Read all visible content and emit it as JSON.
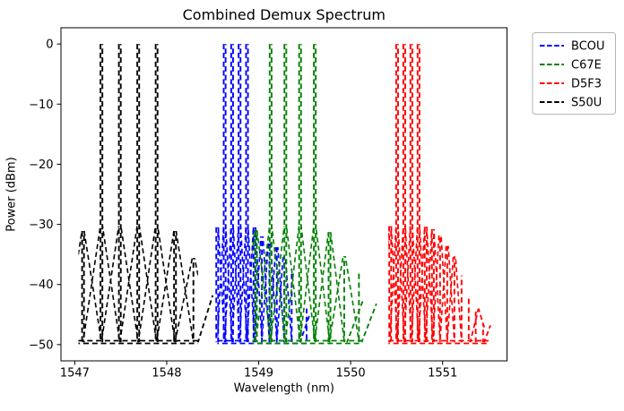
{
  "chart_data": {
    "type": "line",
    "title": "Combined Demux Spectrum",
    "xlabel": "Wavelength (nm)",
    "ylabel": "Power (dBm)",
    "xlim": [
      1546.85,
      1551.7
    ],
    "ylim": [
      -52.7,
      2.7
    ],
    "x_ticks": [
      1547,
      1548,
      1549,
      1550,
      1551
    ],
    "x_tick_labels": [
      "1547",
      "1548",
      "1549",
      "1550",
      "1551"
    ],
    "y_ticks": [
      0,
      -10,
      -20,
      -30,
      -40,
      -50
    ],
    "y_tick_labels": [
      "0",
      "−10",
      "−20",
      "−30",
      "−40",
      "−50"
    ],
    "grid": false,
    "legend_position": "outside-upper-right",
    "line_style": "dashed",
    "floor_dbm": -49.6,
    "series": [
      {
        "name": "BCOU",
        "color": "#0000ff",
        "channel_spacing_nm": 0.081,
        "main_peak_dbm": 0,
        "main_peaks_nm": [
          1548.63,
          1548.711,
          1548.792,
          1548.873
        ],
        "side_peaks": [
          [
            1548.549,
            -30.5
          ],
          [
            1548.954,
            -30.5
          ],
          [
            1549.035,
            -32.0
          ],
          [
            1549.116,
            -32.8
          ],
          [
            1549.197,
            -33.8
          ],
          [
            1549.278,
            -35.3
          ],
          [
            1549.359,
            -37.5
          ],
          [
            1549.44,
            -40.5
          ],
          [
            1549.521,
            -44.0
          ]
        ],
        "baseline_nm": [
          1548.55,
          1549.53
        ],
        "tails": [
          [
            [
              1549.45,
              -49.6
            ],
            [
              1549.55,
              -45.2
            ]
          ]
        ]
      },
      {
        "name": "C67E",
        "color": "#008000",
        "channel_spacing_nm": 0.162,
        "main_peak_dbm": 0,
        "main_peaks_nm": [
          1549.13,
          1549.29,
          1549.45,
          1549.61
        ],
        "side_peaks": [
          [
            1548.97,
            -31.0
          ],
          [
            1549.77,
            -31.3
          ],
          [
            1549.93,
            -35.3
          ],
          [
            1550.09,
            -37.8
          ]
        ],
        "baseline_nm": [
          1548.93,
          1550.13
        ],
        "tails": [
          [
            [
              1549.96,
              -49.6
            ],
            [
              1550.13,
              -42.8
            ]
          ],
          [
            [
              1550.12,
              -49.6
            ],
            [
              1550.28,
              -43.2
            ]
          ]
        ]
      },
      {
        "name": "D5F3",
        "color": "#ff0000",
        "channel_spacing_nm": 0.078,
        "main_peak_dbm": 0,
        "main_peaks_nm": [
          1550.505,
          1550.583,
          1550.66,
          1550.738
        ],
        "side_peaks": [
          [
            1550.43,
            -30.3
          ],
          [
            1550.816,
            -30.4
          ],
          [
            1550.894,
            -30.8
          ],
          [
            1550.972,
            -31.8
          ],
          [
            1551.05,
            -33.6
          ],
          [
            1551.128,
            -35.3
          ],
          [
            1551.206,
            -38.5
          ],
          [
            1551.284,
            -42.0
          ],
          [
            1551.36,
            -44.5
          ],
          [
            1551.44,
            -46.5
          ]
        ],
        "baseline_nm": [
          1550.41,
          1551.5
        ],
        "tails": [
          [
            [
              1551.3,
              -49.6
            ],
            [
              1551.39,
              -44.0
            ]
          ],
          [
            [
              1551.39,
              -44.0
            ],
            [
              1551.46,
              -47.5
            ]
          ],
          [
            [
              1551.45,
              -49.6
            ],
            [
              1551.52,
              -46.8
            ]
          ]
        ]
      },
      {
        "name": "S50U",
        "color": "#000000",
        "channel_spacing_nm": 0.2,
        "main_peak_dbm": 0,
        "main_peaks_nm": [
          1547.29,
          1547.49,
          1547.69,
          1547.89
        ],
        "side_peaks": [
          [
            1547.09,
            -31.1
          ],
          [
            1548.09,
            -31.1
          ],
          [
            1548.29,
            -35.6
          ]
        ],
        "baseline_nm": [
          1547.04,
          1548.34
        ],
        "tails": [
          [
            [
              1548.34,
              -49.6
            ],
            [
              1548.5,
              -41.8
            ]
          ]
        ]
      }
    ]
  },
  "legend": {
    "entries": [
      {
        "label": "BCOU",
        "color": "#0000ff"
      },
      {
        "label": "C67E",
        "color": "#008000"
      },
      {
        "label": "D5F3",
        "color": "#ff0000"
      },
      {
        "label": "S50U",
        "color": "#000000"
      }
    ]
  }
}
